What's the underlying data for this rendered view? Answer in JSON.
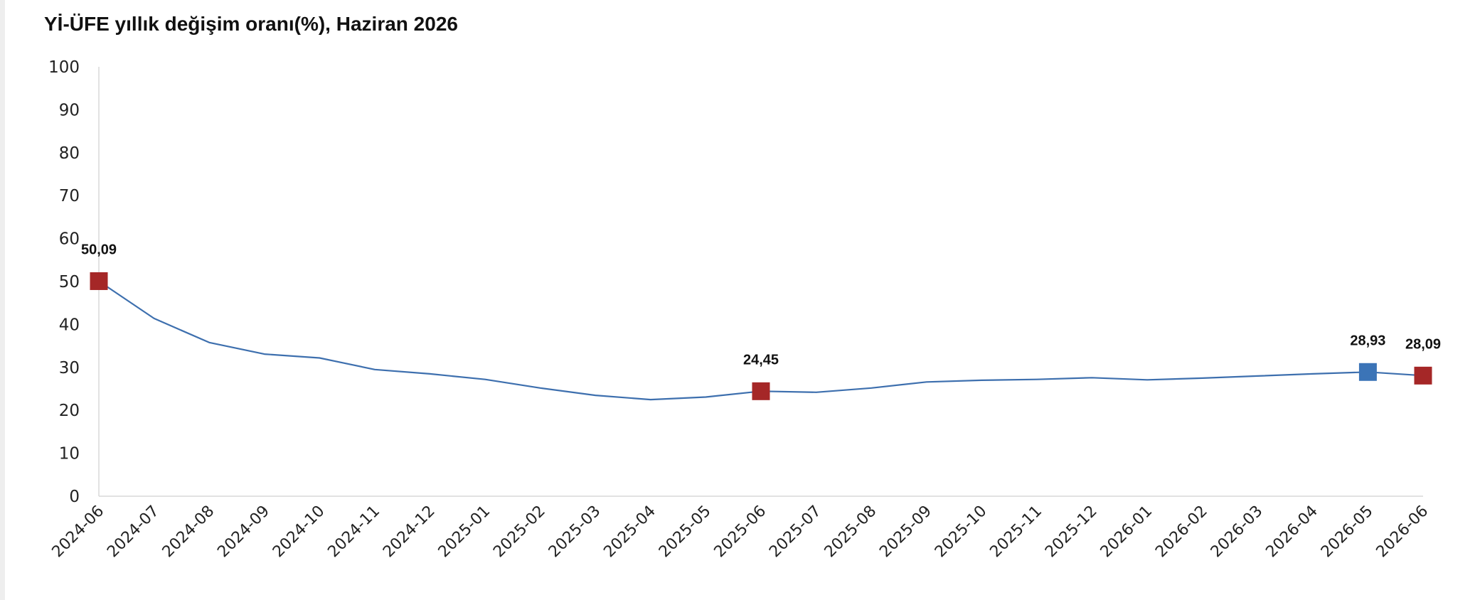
{
  "chart_data": {
    "type": "line",
    "title": "Yİ-ÜFE yıllık değişim oranı(%), Haziran 2026",
    "xlabel": "",
    "ylabel": "",
    "ylim": [
      0,
      100
    ],
    "yticks": [
      0,
      10,
      20,
      30,
      40,
      50,
      60,
      70,
      80,
      90,
      100
    ],
    "grid": false,
    "legend": "none",
    "categories": [
      "2024-06",
      "2024-07",
      "2024-08",
      "2024-09",
      "2024-10",
      "2024-11",
      "2024-12",
      "2025-01",
      "2025-02",
      "2025-03",
      "2025-04",
      "2025-05",
      "2025-06",
      "2025-07",
      "2025-08",
      "2025-09",
      "2025-10",
      "2025-11",
      "2025-12",
      "2026-01",
      "2026-02",
      "2026-03",
      "2026-04",
      "2026-05",
      "2026-06"
    ],
    "series": [
      {
        "values": [
          50.09,
          41.4,
          35.8,
          33.1,
          32.2,
          29.5,
          28.5,
          27.2,
          25.2,
          23.5,
          22.5,
          23.1,
          24.45,
          24.2,
          25.2,
          26.6,
          27.0,
          27.2,
          27.6,
          27.1,
          27.5,
          28.0,
          28.5,
          28.93,
          28.09
        ],
        "color": "#3d6fae"
      }
    ],
    "markers": [
      {
        "index": 0,
        "label": "50,09",
        "color": "#a52727"
      },
      {
        "index": 12,
        "label": "24,45",
        "color": "#a52727"
      },
      {
        "index": 23,
        "label": "28,93",
        "color": "#3b74b7"
      },
      {
        "index": 24,
        "label": "28,09",
        "color": "#a52727"
      }
    ],
    "axis_color": "#d9d9d9"
  }
}
